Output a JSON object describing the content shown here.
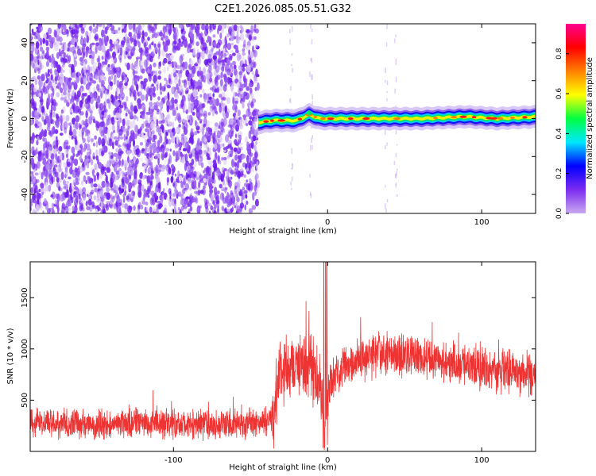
{
  "title": "C2E1.2026.085.05.51.G32",
  "chart_data": [
    {
      "type": "heatmap",
      "xlabel": "Height of straight line (km)",
      "ylabel": "Frequency (Hz)",
      "xlim": [
        -193,
        135
      ],
      "ylim": [
        -50,
        50
      ],
      "xticks": [
        -100,
        0,
        100
      ],
      "yticks": [
        -40,
        -20,
        0,
        20,
        40
      ],
      "noise_region_x": [
        -193,
        -45
      ],
      "signal_track": {
        "x_start": -45,
        "x_end": 135,
        "freq_points": [
          [
            -45,
            -2
          ],
          [
            -35,
            -1
          ],
          [
            -20,
            -1
          ],
          [
            -12,
            2
          ],
          [
            -5,
            0
          ],
          [
            20,
            0
          ],
          [
            60,
            0
          ],
          [
            90,
            1
          ],
          [
            110,
            0
          ],
          [
            135,
            1
          ]
        ]
      },
      "colorbar": {
        "label": "Normalized spectral amplitude",
        "ticks": [
          0.0,
          0.2,
          0.4,
          0.6,
          0.8
        ],
        "range": [
          0,
          0.95
        ],
        "colors": [
          "#c8a8f0",
          "#7c2cf0",
          "#0000ff",
          "#00e8ff",
          "#00ff40",
          "#ffff00",
          "#ff8000",
          "#ff0000",
          "#ff0090"
        ]
      },
      "grid": false
    },
    {
      "type": "line",
      "xlabel": "Height of straight line (km)",
      "ylabel": "SNR (10 * v/v)",
      "xlim": [
        -193,
        135
      ],
      "ylim": [
        0,
        1850
      ],
      "xticks": [
        -100,
        0,
        100
      ],
      "yticks": [
        500,
        1000,
        1500
      ],
      "line_color": "#ee3333",
      "envelope": [
        {
          "x": -193,
          "y": 290
        },
        {
          "x": -170,
          "y": 270
        },
        {
          "x": -150,
          "y": 260
        },
        {
          "x": -120,
          "y": 280
        },
        {
          "x": -100,
          "y": 270
        },
        {
          "x": -80,
          "y": 260
        },
        {
          "x": -60,
          "y": 270
        },
        {
          "x": -36,
          "y": 300
        },
        {
          "x": -32,
          "y": 700
        },
        {
          "x": -25,
          "y": 820
        },
        {
          "x": -15,
          "y": 850
        },
        {
          "x": -5,
          "y": 700
        },
        {
          "x": -2,
          "y": 300
        },
        {
          "x": 2,
          "y": 700
        },
        {
          "x": 15,
          "y": 880
        },
        {
          "x": 35,
          "y": 950
        },
        {
          "x": 55,
          "y": 950
        },
        {
          "x": 75,
          "y": 870
        },
        {
          "x": 100,
          "y": 810
        },
        {
          "x": 120,
          "y": 760
        },
        {
          "x": 135,
          "y": 740
        }
      ],
      "grid": false
    }
  ]
}
